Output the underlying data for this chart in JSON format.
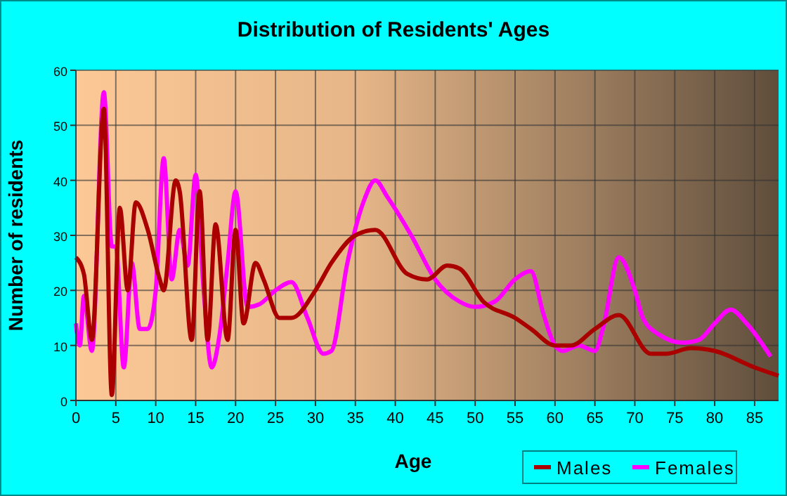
{
  "chart_data": {
    "type": "line",
    "title": "Distribution of Residents' Ages",
    "xlabel": "Age",
    "ylabel": "Number of residents",
    "xlim": [
      0,
      88
    ],
    "ylim": [
      0,
      60
    ],
    "xticks": [
      0,
      5,
      10,
      15,
      20,
      25,
      30,
      35,
      40,
      45,
      50,
      55,
      60,
      65,
      70,
      75,
      80,
      85
    ],
    "yticks": [
      0,
      10,
      20,
      30,
      40,
      50,
      60
    ],
    "grid": true,
    "legend": "bottom right",
    "series": [
      {
        "name": "Males",
        "color": "#aa0000",
        "x": [
          0,
          1,
          2,
          3.5,
          4.5,
          5.5,
          6.5,
          7.5,
          9,
          10.5,
          11,
          12.5,
          13,
          14.5,
          15.5,
          16.5,
          17.5,
          19,
          20,
          21,
          22.5,
          23.5,
          25.5,
          27,
          30,
          32,
          35,
          37.5,
          41.5,
          44,
          46.5,
          48,
          51,
          55,
          57,
          60,
          62,
          65,
          68,
          72,
          74,
          77,
          80,
          85,
          88
        ],
        "values": [
          26,
          23,
          11,
          53,
          1,
          35,
          20,
          36,
          31,
          22,
          20,
          40,
          38,
          11,
          38,
          11,
          32,
          11,
          31,
          14,
          25,
          22,
          15,
          15,
          20,
          25,
          30,
          31,
          23,
          22,
          24.5,
          24,
          18,
          15,
          13,
          10,
          10,
          13,
          15.5,
          8.5,
          8.5,
          9.5,
          9,
          6,
          4.5
        ]
      },
      {
        "name": "Females",
        "color": "#ff00ff",
        "x": [
          0,
          0.5,
          1,
          2,
          3.5,
          4.5,
          5,
          6,
          7,
          8,
          9,
          10,
          11,
          12,
          13,
          14,
          15,
          16,
          17,
          18,
          19,
          20,
          21.5,
          23,
          25,
          27,
          29,
          31,
          32,
          34,
          36,
          37.5,
          39,
          42,
          45,
          48,
          50,
          52.5,
          55,
          57,
          58.5,
          60,
          61,
          63,
          65,
          66,
          68,
          70,
          71,
          73,
          76,
          78,
          80,
          82,
          84,
          87
        ],
        "values": [
          14,
          10,
          19,
          9,
          56,
          28,
          28,
          6,
          25,
          13,
          13,
          20,
          44,
          22,
          31,
          24.5,
          41,
          20,
          6,
          12,
          25,
          38,
          17,
          17.5,
          20,
          21.5,
          15,
          8.5,
          9,
          25,
          36,
          40,
          37,
          30,
          22,
          18,
          17,
          18,
          22,
          23.5,
          16,
          10,
          9,
          10,
          9,
          13,
          26,
          20,
          15,
          12,
          10.5,
          11,
          14,
          16.5,
          14,
          8
        ]
      }
    ]
  }
}
